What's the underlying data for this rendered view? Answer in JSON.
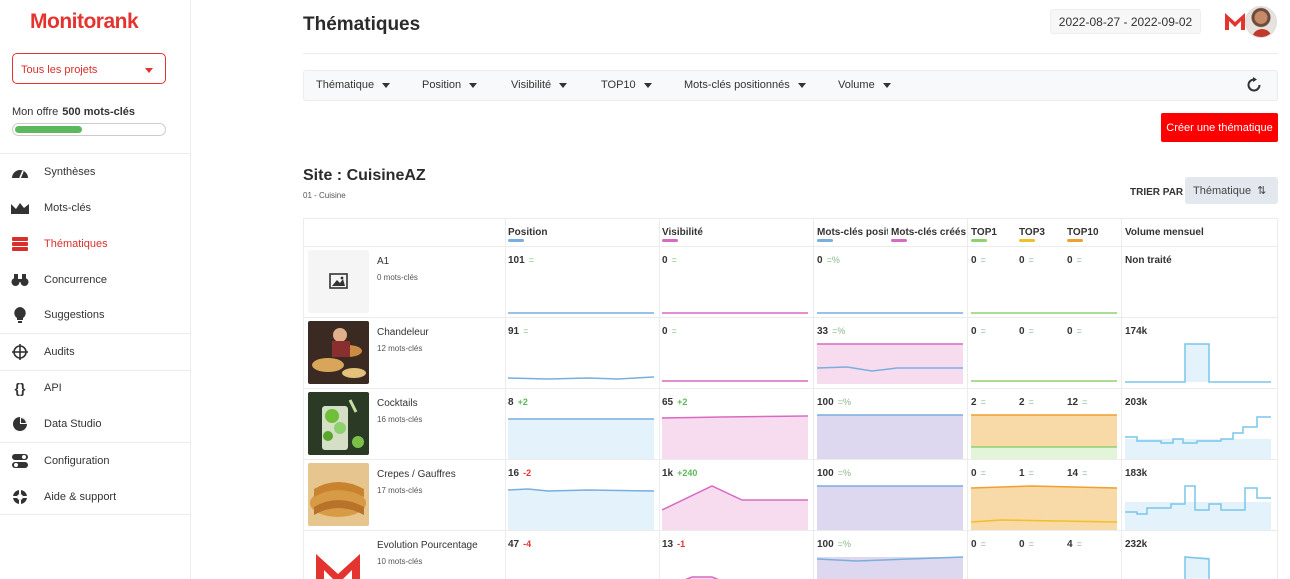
{
  "app": {
    "logo": "Monitorank",
    "project_select": "Tous les projets",
    "offer_label": "Mon offre",
    "offer_value": "500 mots-clés",
    "offer_usage_fraction": 0.45
  },
  "sidebar": {
    "items": [
      {
        "label": "Synthèses",
        "icon": "gauge-icon"
      },
      {
        "label": "Mots-clés",
        "icon": "mountain-chart-icon"
      },
      {
        "label": "Thématiques",
        "icon": "layers-icon"
      },
      {
        "label": "Concurrence",
        "icon": "binoculars-icon"
      },
      {
        "label": "Suggestions",
        "icon": "lightbulb-icon"
      },
      {
        "label": "Audits",
        "icon": "crosshair-icon"
      },
      {
        "label": "API",
        "icon": "braces-icon"
      },
      {
        "label": "Data Studio",
        "icon": "pie-chart-icon"
      },
      {
        "label": "Configuration",
        "icon": "toggles-icon"
      },
      {
        "label": "Aide & support",
        "icon": "lifebuoy-icon"
      }
    ]
  },
  "header": {
    "title": "Thématiques",
    "date_range": "2022-08-27 - 2022-09-02"
  },
  "filters": [
    {
      "label": "Thématique"
    },
    {
      "label": "Position"
    },
    {
      "label": "Visibilité"
    },
    {
      "label": "TOP10"
    },
    {
      "label": "Mots-clés positionnés"
    },
    {
      "label": "Volume"
    }
  ],
  "create_button": "Créer une thématique",
  "site": {
    "title": "Site : CuisineAZ",
    "subtitle": "01 - Cuisine",
    "sort_label": "TRIER PAR",
    "sort_value": "Thématique"
  },
  "table": {
    "columns": [
      {
        "label": "Position",
        "color": "#7aaede"
      },
      {
        "label": "Visibilité",
        "color": "#d96ac2"
      },
      {
        "label": "Mots-clés positionnés",
        "color": "#7aaede"
      },
      {
        "label": "Mots-clés créés",
        "color": "#d96ac2"
      },
      {
        "label": "TOP1",
        "color": "#8fd16f"
      },
      {
        "label": "TOP3",
        "color": "#f0c02a"
      },
      {
        "label": "TOP10",
        "color": "#f0a030"
      },
      {
        "label": "Volume mensuel",
        "color": ""
      }
    ],
    "rows": [
      {
        "name": "A1",
        "count": "0 mots-clés",
        "thumb": "placeholder",
        "position": "101",
        "position_delta": "=",
        "position_trend": "eq",
        "visibility": "0",
        "visibility_delta": "=",
        "visibility_trend": "eq",
        "kw": "0",
        "kw_delta": "=%",
        "kw_trend": "eq",
        "top1": "0",
        "top1_delta": "=",
        "top3": "0",
        "top3_delta": "=",
        "top10": "0",
        "top10_delta": "=",
        "volume": "Non traité"
      },
      {
        "name": "Chandeleur",
        "count": "12 mots-clés",
        "thumb": "chandeleur",
        "position": "91",
        "position_delta": "=",
        "position_trend": "eq",
        "visibility": "0",
        "visibility_delta": "=",
        "visibility_trend": "eq",
        "kw": "33",
        "kw_delta": "=%",
        "kw_trend": "eq",
        "top1": "0",
        "top1_delta": "=",
        "top3": "0",
        "top3_delta": "=",
        "top10": "0",
        "top10_delta": "=",
        "volume": "174k"
      },
      {
        "name": "Cocktails",
        "count": "16 mots-clés",
        "thumb": "cocktails",
        "position": "8",
        "position_delta": "+2",
        "position_trend": "up",
        "visibility": "65",
        "visibility_delta": "+2",
        "visibility_trend": "up",
        "kw": "100",
        "kw_delta": "=%",
        "kw_trend": "eq",
        "top1": "2",
        "top1_delta": "=",
        "top3": "2",
        "top3_delta": "=",
        "top10": "12",
        "top10_delta": "=",
        "volume": "203k"
      },
      {
        "name": "Crepes / Gauffres",
        "count": "17 mots-clés",
        "thumb": "crepes",
        "position": "16",
        "position_delta": "-2",
        "position_trend": "down",
        "visibility": "1k",
        "visibility_delta": "+240",
        "visibility_trend": "up",
        "kw": "100",
        "kw_delta": "=%",
        "kw_trend": "eq",
        "top1": "0",
        "top1_delta": "=",
        "top3": "1",
        "top3_delta": "=",
        "top10": "14",
        "top10_delta": "=",
        "volume": "183k"
      },
      {
        "name": "Evolution Pourcentage",
        "count": "10 mots-clés",
        "thumb": "logo",
        "position": "47",
        "position_delta": "-4",
        "position_trend": "down",
        "visibility": "13",
        "visibility_delta": "-1",
        "visibility_trend": "down",
        "kw": "100",
        "kw_delta": "=%",
        "kw_trend": "eq",
        "top1": "0",
        "top1_delta": "=",
        "top3": "0",
        "top3_delta": "=",
        "top10": "4",
        "top10_delta": "=",
        "volume": "232k"
      }
    ]
  }
}
